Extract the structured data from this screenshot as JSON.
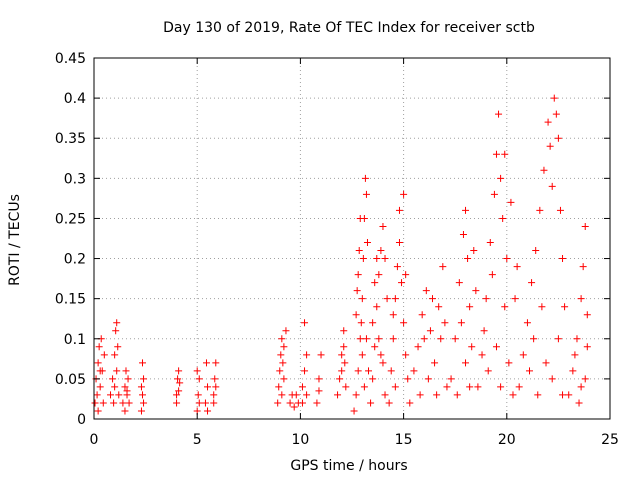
{
  "chart_data": {
    "type": "scatter",
    "title": "Day 130 of 2019, Rate Of TEC Index for receiver sctb",
    "xlabel": "GPS time / hours",
    "ylabel": "ROTI / TECUs",
    "xlim": [
      0,
      25
    ],
    "ylim": [
      0,
      0.45
    ],
    "x_ticks": [
      0,
      5,
      10,
      15,
      20,
      25
    ],
    "y_ticks": [
      0,
      0.05,
      0.1,
      0.15,
      0.2,
      0.25,
      0.3,
      0.35,
      0.4,
      0.45
    ],
    "x_tick_labels": [
      "0",
      "5",
      "10",
      "15",
      "20",
      "25"
    ],
    "y_tick_labels": [
      "0",
      "0.05",
      "0.1",
      "0.15",
      "0.2",
      "0.25",
      "0.3",
      "0.35",
      "0.4",
      "0.45"
    ],
    "grid": true,
    "marker": "plus",
    "color": "#ff0000",
    "points": [
      [
        0.05,
        0.02
      ],
      [
        0.1,
        0.05
      ],
      [
        0.15,
        0.03
      ],
      [
        0.2,
        0.07
      ],
      [
        0.25,
        0.09
      ],
      [
        0.3,
        0.04
      ],
      [
        0.35,
        0.1
      ],
      [
        0.4,
        0.06
      ],
      [
        0.45,
        0.02
      ],
      [
        0.5,
        0.08
      ],
      [
        0.2,
        0.01
      ],
      [
        0.3,
        0.06
      ],
      [
        0.8,
        0.03
      ],
      [
        0.9,
        0.05
      ],
      [
        1.0,
        0.08
      ],
      [
        1.05,
        0.11
      ],
      [
        1.1,
        0.12
      ],
      [
        1.15,
        0.09
      ],
      [
        1.0,
        0.04
      ],
      [
        0.95,
        0.02
      ],
      [
        1.1,
        0.06
      ],
      [
        1.2,
        0.03
      ],
      [
        1.4,
        0.02
      ],
      [
        1.5,
        0.04
      ],
      [
        1.55,
        0.06
      ],
      [
        1.6,
        0.03
      ],
      [
        1.65,
        0.05
      ],
      [
        1.7,
        0.02
      ],
      [
        1.5,
        0.01
      ],
      [
        1.6,
        0.035
      ],
      [
        2.3,
        0.01
      ],
      [
        2.35,
        0.03
      ],
      [
        2.4,
        0.05
      ],
      [
        2.35,
        0.07
      ],
      [
        2.4,
        0.02
      ],
      [
        2.3,
        0.04
      ],
      [
        4.0,
        0.02
      ],
      [
        4.1,
        0.035
      ],
      [
        4.05,
        0.05
      ],
      [
        4.1,
        0.06
      ],
      [
        4.0,
        0.03
      ],
      [
        4.15,
        0.045
      ],
      [
        5.0,
        0.01
      ],
      [
        5.05,
        0.03
      ],
      [
        5.1,
        0.05
      ],
      [
        5.0,
        0.06
      ],
      [
        5.1,
        0.02
      ],
      [
        5.4,
        0.02
      ],
      [
        5.5,
        0.04
      ],
      [
        5.45,
        0.07
      ],
      [
        5.5,
        0.01
      ],
      [
        5.8,
        0.03
      ],
      [
        5.85,
        0.05
      ],
      [
        5.9,
        0.07
      ],
      [
        5.8,
        0.02
      ],
      [
        5.9,
        0.04
      ],
      [
        8.9,
        0.02
      ],
      [
        8.95,
        0.04
      ],
      [
        9.0,
        0.06
      ],
      [
        9.05,
        0.08
      ],
      [
        9.1,
        0.1
      ],
      [
        9.15,
        0.07
      ],
      [
        9.2,
        0.05
      ],
      [
        9.3,
        0.11
      ],
      [
        9.1,
        0.03
      ],
      [
        9.2,
        0.09
      ],
      [
        9.5,
        0.02
      ],
      [
        9.6,
        0.03
      ],
      [
        9.7,
        0.015
      ],
      [
        9.8,
        0.03
      ],
      [
        9.9,
        0.02
      ],
      [
        10.1,
        0.04
      ],
      [
        10.2,
        0.06
      ],
      [
        10.3,
        0.08
      ],
      [
        10.2,
        0.12
      ],
      [
        10.1,
        0.02
      ],
      [
        10.3,
        0.03
      ],
      [
        10.8,
        0.02
      ],
      [
        10.9,
        0.05
      ],
      [
        11.0,
        0.08
      ],
      [
        10.9,
        0.035
      ],
      [
        11.8,
        0.03
      ],
      [
        11.9,
        0.05
      ],
      [
        12.0,
        0.08
      ],
      [
        12.1,
        0.11
      ],
      [
        12.15,
        0.07
      ],
      [
        12.2,
        0.04
      ],
      [
        12.0,
        0.06
      ],
      [
        12.1,
        0.09
      ],
      [
        12.6,
        0.01
      ],
      [
        12.7,
        0.03
      ],
      [
        12.8,
        0.06
      ],
      [
        12.9,
        0.1
      ],
      [
        13.0,
        0.15
      ],
      [
        13.05,
        0.2
      ],
      [
        13.1,
        0.25
      ],
      [
        13.15,
        0.3
      ],
      [
        13.2,
        0.28
      ],
      [
        13.25,
        0.22
      ],
      [
        12.75,
        0.16
      ],
      [
        12.85,
        0.21
      ],
      [
        12.95,
        0.12
      ],
      [
        13.0,
        0.08
      ],
      [
        13.1,
        0.04
      ],
      [
        12.7,
        0.13
      ],
      [
        12.8,
        0.18
      ],
      [
        13.2,
        0.1
      ],
      [
        13.3,
        0.06
      ],
      [
        12.9,
        0.25
      ],
      [
        13.4,
        0.02
      ],
      [
        13.5,
        0.05
      ],
      [
        13.6,
        0.09
      ],
      [
        13.7,
        0.14
      ],
      [
        13.8,
        0.18
      ],
      [
        13.9,
        0.21
      ],
      [
        14.0,
        0.24
      ],
      [
        14.1,
        0.2
      ],
      [
        14.2,
        0.15
      ],
      [
        13.5,
        0.12
      ],
      [
        13.6,
        0.17
      ],
      [
        13.8,
        0.1
      ],
      [
        14.0,
        0.07
      ],
      [
        14.1,
        0.03
      ],
      [
        13.7,
        0.2
      ],
      [
        13.9,
        0.08
      ],
      [
        14.3,
        0.02
      ],
      [
        14.4,
        0.06
      ],
      [
        14.5,
        0.1
      ],
      [
        14.6,
        0.15
      ],
      [
        14.7,
        0.19
      ],
      [
        14.8,
        0.22
      ],
      [
        14.9,
        0.17
      ],
      [
        15.0,
        0.28
      ],
      [
        15.0,
        0.12
      ],
      [
        15.1,
        0.08
      ],
      [
        15.2,
        0.05
      ],
      [
        14.8,
        0.26
      ],
      [
        14.6,
        0.04
      ],
      [
        14.5,
        0.13
      ],
      [
        15.1,
        0.18
      ],
      [
        15.3,
        0.02
      ],
      [
        15.5,
        0.06
      ],
      [
        15.7,
        0.09
      ],
      [
        15.9,
        0.13
      ],
      [
        16.1,
        0.16
      ],
      [
        16.3,
        0.11
      ],
      [
        16.5,
        0.07
      ],
      [
        16.7,
        0.14
      ],
      [
        16.9,
        0.19
      ],
      [
        17.1,
        0.04
      ],
      [
        15.8,
        0.03
      ],
      [
        16.0,
        0.1
      ],
      [
        16.2,
        0.05
      ],
      [
        16.4,
        0.15
      ],
      [
        16.6,
        0.03
      ],
      [
        16.8,
        0.1
      ],
      [
        17.0,
        0.12
      ],
      [
        17.3,
        0.05
      ],
      [
        17.5,
        0.1
      ],
      [
        17.7,
        0.17
      ],
      [
        17.9,
        0.23
      ],
      [
        18.0,
        0.26
      ],
      [
        18.1,
        0.2
      ],
      [
        18.2,
        0.14
      ],
      [
        18.3,
        0.09
      ],
      [
        18.4,
        0.21
      ],
      [
        17.6,
        0.03
      ],
      [
        17.8,
        0.12
      ],
      [
        18.0,
        0.07
      ],
      [
        18.2,
        0.04
      ],
      [
        18.5,
        0.16
      ],
      [
        18.6,
        0.04
      ],
      [
        18.8,
        0.08
      ],
      [
        19.0,
        0.15
      ],
      [
        19.2,
        0.22
      ],
      [
        19.4,
        0.28
      ],
      [
        19.5,
        0.33
      ],
      [
        19.6,
        0.38
      ],
      [
        19.7,
        0.3
      ],
      [
        19.8,
        0.25
      ],
      [
        19.9,
        0.33
      ],
      [
        20.0,
        0.2
      ],
      [
        20.2,
        0.27
      ],
      [
        20.4,
        0.15
      ],
      [
        18.9,
        0.11
      ],
      [
        19.1,
        0.06
      ],
      [
        19.3,
        0.18
      ],
      [
        19.5,
        0.09
      ],
      [
        19.7,
        0.04
      ],
      [
        19.9,
        0.14
      ],
      [
        20.1,
        0.07
      ],
      [
        20.3,
        0.03
      ],
      [
        20.5,
        0.19
      ],
      [
        20.6,
        0.04
      ],
      [
        20.8,
        0.08
      ],
      [
        21.0,
        0.12
      ],
      [
        21.2,
        0.17
      ],
      [
        21.4,
        0.21
      ],
      [
        21.6,
        0.26
      ],
      [
        21.8,
        0.31
      ],
      [
        22.0,
        0.37
      ],
      [
        22.1,
        0.34
      ],
      [
        22.2,
        0.29
      ],
      [
        22.3,
        0.4
      ],
      [
        22.4,
        0.38
      ],
      [
        22.5,
        0.35
      ],
      [
        22.6,
        0.26
      ],
      [
        22.7,
        0.2
      ],
      [
        22.8,
        0.14
      ],
      [
        21.1,
        0.06
      ],
      [
        21.3,
        0.1
      ],
      [
        21.5,
        0.03
      ],
      [
        21.7,
        0.14
      ],
      [
        21.9,
        0.07
      ],
      [
        22.2,
        0.05
      ],
      [
        22.5,
        0.1
      ],
      [
        22.7,
        0.03
      ],
      [
        23.0,
        0.03
      ],
      [
        23.2,
        0.06
      ],
      [
        23.4,
        0.1
      ],
      [
        23.6,
        0.15
      ],
      [
        23.7,
        0.19
      ],
      [
        23.8,
        0.24
      ],
      [
        23.9,
        0.13
      ],
      [
        23.5,
        0.02
      ],
      [
        23.3,
        0.08
      ],
      [
        23.8,
        0.05
      ],
      [
        23.6,
        0.04
      ],
      [
        23.9,
        0.09
      ]
    ]
  }
}
